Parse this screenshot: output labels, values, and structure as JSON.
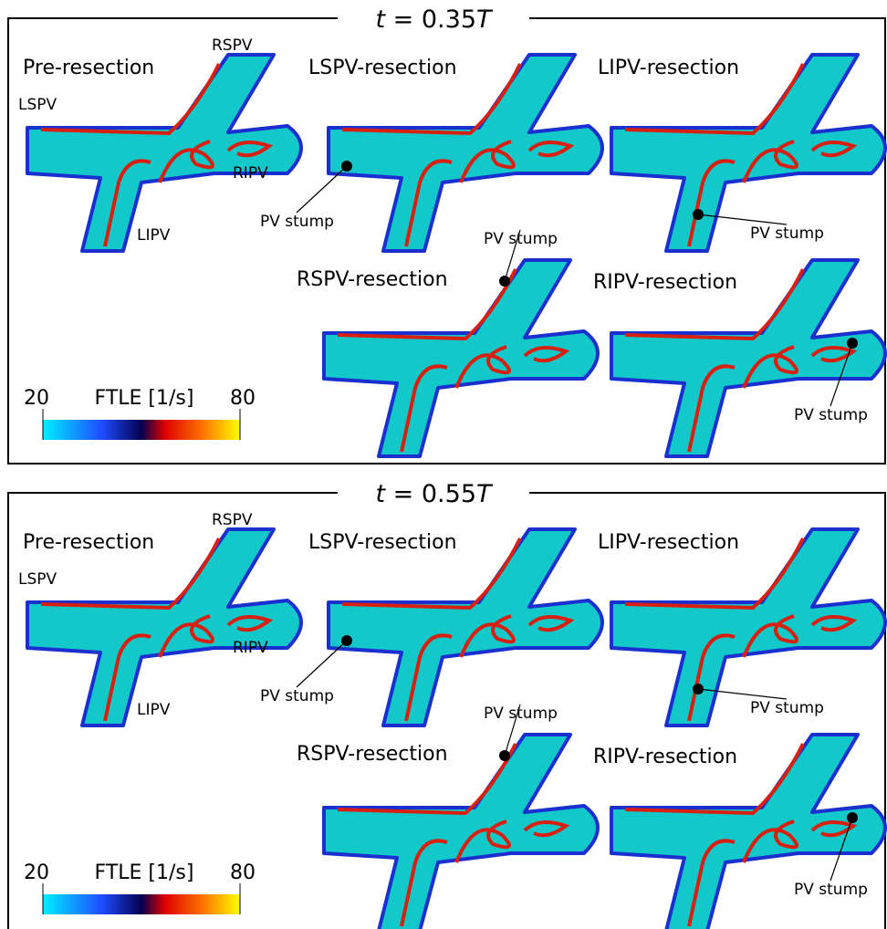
{
  "panels": [
    {
      "title": [
        "t",
        " = 0.35",
        "T"
      ],
      "subpanels": [
        {
          "label": "Pre-resection",
          "annotations": [
            "LSPV",
            "RSPV",
            "RIPV",
            "LIPV"
          ]
        },
        {
          "label": "LSPV-resection",
          "annotations": [
            "PV stump"
          ]
        },
        {
          "label": "LIPV-resection",
          "annotations": [
            "PV stump"
          ]
        },
        {
          "label": "RSPV-resection",
          "annotations": [
            "PV stump"
          ]
        },
        {
          "label": "RIPV-resection",
          "annotations": [
            "PV stump"
          ]
        }
      ],
      "colorbar": {
        "min": 20,
        "label": "FTLE [1/s]",
        "max": 80
      }
    },
    {
      "title": [
        "t",
        " = 0.55",
        "T"
      ],
      "subpanels": [
        {
          "label": "Pre-resection",
          "annotations": [
            "LSPV",
            "RSPV",
            "RIPV",
            "LIPV"
          ]
        },
        {
          "label": "LSPV-resection",
          "annotations": [
            "PV stump"
          ]
        },
        {
          "label": "LIPV-resection",
          "annotations": [
            "PV stump"
          ]
        },
        {
          "label": "RSPV-resection",
          "annotations": [
            "PV stump"
          ]
        },
        {
          "label": "RIPV-resection",
          "annotations": [
            "PV stump"
          ]
        }
      ],
      "colorbar": {
        "min": 20,
        "label": "FTLE [1/s]",
        "max": 80
      }
    }
  ]
}
